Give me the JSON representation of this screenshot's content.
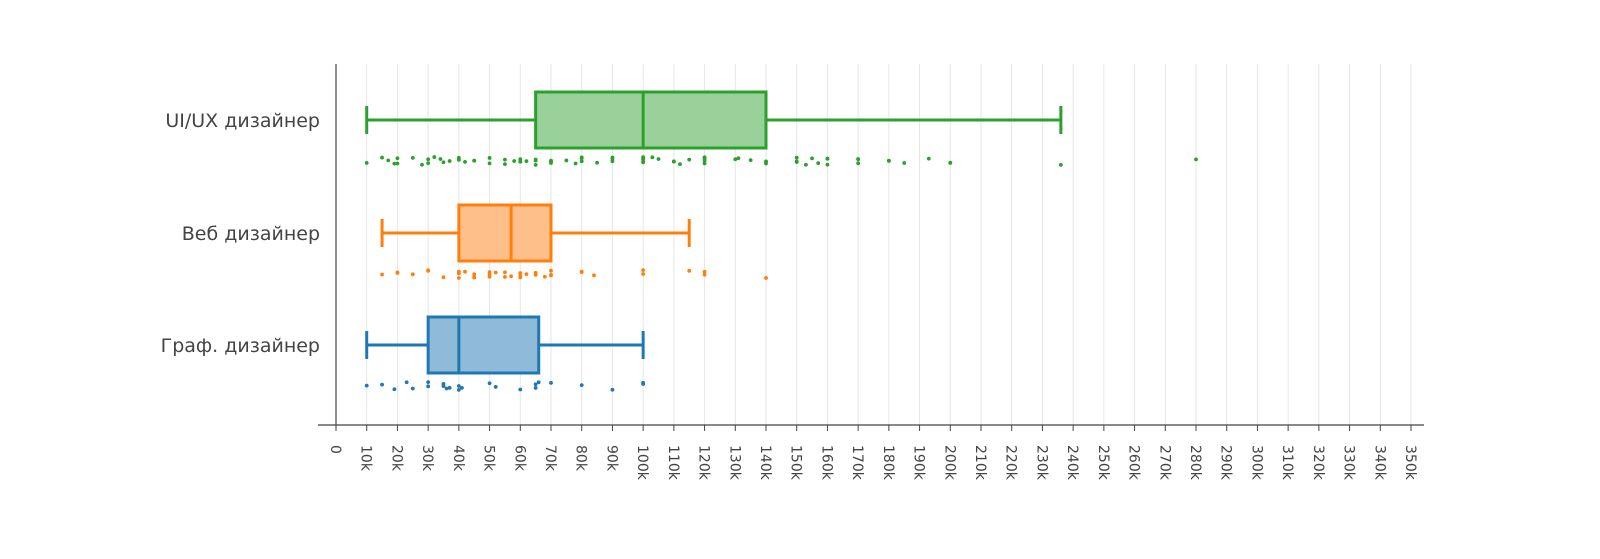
{
  "chart_data": {
    "type": "box",
    "orientation": "horizontal",
    "title": "",
    "xlabel": "",
    "ylabel": "",
    "xlim": [
      0,
      350000
    ],
    "x_ticks": [
      {
        "value": 0,
        "label": "0"
      },
      {
        "value": 10000,
        "label": "10k"
      },
      {
        "value": 20000,
        "label": "20k"
      },
      {
        "value": 30000,
        "label": "30k"
      },
      {
        "value": 40000,
        "label": "40k"
      },
      {
        "value": 50000,
        "label": "50k"
      },
      {
        "value": 60000,
        "label": "60k"
      },
      {
        "value": 70000,
        "label": "70k"
      },
      {
        "value": 80000,
        "label": "80k"
      },
      {
        "value": 90000,
        "label": "90k"
      },
      {
        "value": 100000,
        "label": "100k"
      },
      {
        "value": 110000,
        "label": "110k"
      },
      {
        "value": 120000,
        "label": "120k"
      },
      {
        "value": 130000,
        "label": "130k"
      },
      {
        "value": 140000,
        "label": "140k"
      },
      {
        "value": 150000,
        "label": "150k"
      },
      {
        "value": 160000,
        "label": "160k"
      },
      {
        "value": 170000,
        "label": "170k"
      },
      {
        "value": 180000,
        "label": "180k"
      },
      {
        "value": 190000,
        "label": "190k"
      },
      {
        "value": 200000,
        "label": "200k"
      },
      {
        "value": 210000,
        "label": "210k"
      },
      {
        "value": 220000,
        "label": "220k"
      },
      {
        "value": 230000,
        "label": "230k"
      },
      {
        "value": 240000,
        "label": "240k"
      },
      {
        "value": 250000,
        "label": "250k"
      },
      {
        "value": 260000,
        "label": "260k"
      },
      {
        "value": 270000,
        "label": "270k"
      },
      {
        "value": 280000,
        "label": "280k"
      },
      {
        "value": 290000,
        "label": "290k"
      },
      {
        "value": 300000,
        "label": "300k"
      },
      {
        "value": 310000,
        "label": "310k"
      },
      {
        "value": 320000,
        "label": "320k"
      },
      {
        "value": 330000,
        "label": "330k"
      },
      {
        "value": 340000,
        "label": "340k"
      },
      {
        "value": 350000,
        "label": "350k"
      }
    ],
    "grid": true,
    "legend": "none",
    "series": [
      {
        "name": "UI/UX дизайнер",
        "color": "#2ca02c",
        "fill": "#9ad19a",
        "min": 10000,
        "q1": 65000,
        "median": 100000,
        "q3": 140000,
        "max": 236000,
        "points": [
          10000,
          15000,
          17000,
          19000,
          20000,
          20000,
          25000,
          28000,
          30000,
          30000,
          32000,
          34000,
          35000,
          37000,
          40000,
          40000,
          42000,
          45000,
          45000,
          50000,
          50000,
          55000,
          55000,
          58000,
          60000,
          60000,
          60000,
          62000,
          65000,
          65000,
          65000,
          70000,
          70000,
          70000,
          75000,
          78000,
          80000,
          80000,
          80000,
          85000,
          90000,
          90000,
          90000,
          100000,
          100000,
          100000,
          100000,
          100000,
          103000,
          105000,
          110000,
          110000,
          112000,
          115000,
          120000,
          120000,
          120000,
          120000,
          130000,
          131000,
          135000,
          140000,
          140000,
          140000,
          150000,
          150000,
          150000,
          153000,
          155000,
          157000,
          160000,
          160000,
          160000,
          170000,
          170000,
          170000,
          180000,
          180000,
          185000,
          193000,
          200000,
          200000,
          236000,
          280000
        ]
      },
      {
        "name": "Веб дизайнер",
        "color": "#ff7f0e",
        "fill": "#ffbf8a",
        "min": 15000,
        "q1": 40000,
        "median": 57000,
        "q3": 70000,
        "max": 115000,
        "points": [
          15000,
          20000,
          20000,
          25000,
          30000,
          30000,
          35000,
          40000,
          40000,
          40000,
          42000,
          45000,
          45000,
          45000,
          50000,
          50000,
          50000,
          52000,
          55000,
          55000,
          57000,
          60000,
          60000,
          60000,
          62000,
          65000,
          65000,
          68000,
          70000,
          70000,
          70000,
          80000,
          80000,
          84000,
          100000,
          100000,
          115000,
          120000,
          120000,
          140000
        ]
      },
      {
        "name": "Граф. дизайнер",
        "color": "#1f77b4",
        "fill": "#8fbbd9",
        "min": 10000,
        "q1": 30000,
        "median": 40000,
        "q3": 66000,
        "max": 100000,
        "points": [
          10000,
          15000,
          19000,
          23000,
          25000,
          30000,
          30000,
          35000,
          35000,
          36000,
          37000,
          40000,
          40000,
          41000,
          50000,
          52000,
          60000,
          65000,
          65000,
          66000,
          70000,
          80000,
          90000,
          100000,
          100000
        ]
      }
    ]
  }
}
